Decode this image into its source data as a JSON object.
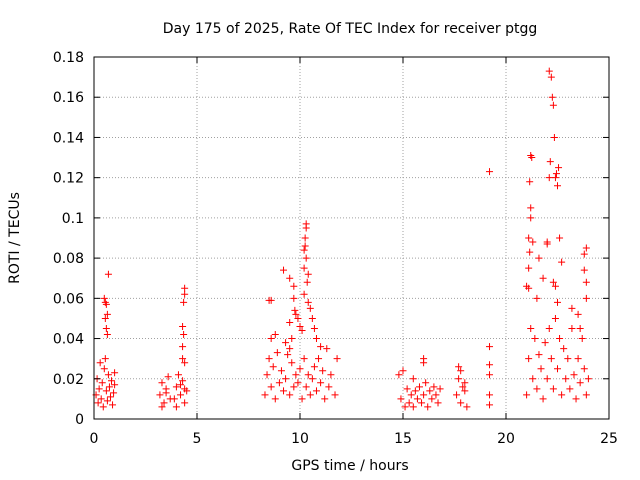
{
  "chart_data": {
    "type": "scatter",
    "title": "Day 175 of 2025, Rate Of TEC Index for receiver ptgg",
    "xlabel": "GPS time / hours",
    "ylabel": "ROTI / TECUs",
    "xlim": [
      0,
      25
    ],
    "ylim": [
      0,
      0.18
    ],
    "x_ticks": [
      "0",
      "5",
      "10",
      "15",
      "20",
      "25"
    ],
    "y_ticks": [
      "0",
      "0.02",
      "0.04",
      "0.06",
      "0.08",
      "0.1",
      "0.12",
      "0.14",
      "0.16",
      "0.18"
    ],
    "grid": true,
    "marker": "+",
    "color": "#ff0000",
    "series": [
      {
        "points": [
          [
            0.1,
            0.012
          ],
          [
            0.15,
            0.02
          ],
          [
            0.2,
            0.008
          ],
          [
            0.25,
            0.015
          ],
          [
            0.3,
            0.028
          ],
          [
            0.35,
            0.01
          ],
          [
            0.4,
            0.018
          ],
          [
            0.45,
            0.006
          ],
          [
            0.5,
            0.025
          ],
          [
            0.55,
            0.03
          ],
          [
            0.6,
            0.014
          ],
          [
            0.65,
            0.009
          ],
          [
            0.7,
            0.022
          ],
          [
            0.75,
            0.016
          ],
          [
            0.8,
            0.011
          ],
          [
            0.85,
            0.019
          ],
          [
            0.9,
            0.007
          ],
          [
            0.95,
            0.013
          ],
          [
            1.0,
            0.017
          ],
          [
            1.0,
            0.023
          ],
          [
            0.5,
            0.06
          ],
          [
            0.55,
            0.058
          ],
          [
            0.6,
            0.057
          ],
          [
            0.65,
            0.052
          ],
          [
            0.6,
            0.045
          ],
          [
            0.65,
            0.042
          ],
          [
            0.7,
            0.072
          ],
          [
            0.55,
            0.05
          ],
          [
            3.2,
            0.012
          ],
          [
            3.3,
            0.018
          ],
          [
            3.4,
            0.008
          ],
          [
            3.5,
            0.015
          ],
          [
            3.6,
            0.021
          ],
          [
            3.7,
            0.01
          ],
          [
            3.3,
            0.006
          ],
          [
            3.5,
            0.013
          ],
          [
            3.9,
            0.01
          ],
          [
            4.0,
            0.016
          ],
          [
            4.1,
            0.022
          ],
          [
            4.2,
            0.012
          ],
          [
            4.3,
            0.019
          ],
          [
            4.4,
            0.008
          ],
          [
            4.5,
            0.014
          ],
          [
            4.0,
            0.006
          ],
          [
            4.2,
            0.017
          ],
          [
            4.4,
            0.015
          ],
          [
            4.4,
            0.065
          ],
          [
            4.4,
            0.062
          ],
          [
            4.35,
            0.058
          ],
          [
            4.3,
            0.046
          ],
          [
            4.35,
            0.042
          ],
          [
            4.3,
            0.036
          ],
          [
            4.3,
            0.03
          ],
          [
            4.4,
            0.028
          ],
          [
            8.3,
            0.012
          ],
          [
            8.4,
            0.022
          ],
          [
            8.5,
            0.03
          ],
          [
            8.6,
            0.016
          ],
          [
            8.7,
            0.026
          ],
          [
            8.8,
            0.01
          ],
          [
            8.9,
            0.033
          ],
          [
            9.0,
            0.018
          ],
          [
            9.1,
            0.024
          ],
          [
            9.2,
            0.014
          ],
          [
            9.3,
            0.02
          ],
          [
            9.4,
            0.032
          ],
          [
            9.5,
            0.012
          ],
          [
            9.6,
            0.028
          ],
          [
            9.7,
            0.016
          ],
          [
            9.8,
            0.022
          ],
          [
            9.9,
            0.018
          ],
          [
            10.0,
            0.025
          ],
          [
            10.1,
            0.01
          ],
          [
            10.2,
            0.03
          ],
          [
            10.3,
            0.016
          ],
          [
            10.4,
            0.022
          ],
          [
            10.5,
            0.012
          ],
          [
            10.6,
            0.02
          ],
          [
            10.7,
            0.026
          ],
          [
            10.8,
            0.014
          ],
          [
            10.9,
            0.03
          ],
          [
            11.0,
            0.018
          ],
          [
            11.1,
            0.024
          ],
          [
            11.2,
            0.01
          ],
          [
            11.3,
            0.035
          ],
          [
            11.4,
            0.016
          ],
          [
            11.5,
            0.022
          ],
          [
            11.7,
            0.012
          ],
          [
            11.8,
            0.03
          ],
          [
            8.6,
            0.04
          ],
          [
            8.8,
            0.042
          ],
          [
            9.3,
            0.038
          ],
          [
            9.5,
            0.035
          ],
          [
            8.5,
            0.059
          ],
          [
            8.6,
            0.059
          ],
          [
            9.2,
            0.074
          ],
          [
            9.5,
            0.07
          ],
          [
            9.7,
            0.066
          ],
          [
            9.7,
            0.06
          ],
          [
            9.75,
            0.054
          ],
          [
            9.8,
            0.052
          ],
          [
            9.9,
            0.05
          ],
          [
            9.5,
            0.048
          ],
          [
            10.0,
            0.046
          ],
          [
            10.1,
            0.044
          ],
          [
            9.6,
            0.04
          ],
          [
            10.2,
            0.084
          ],
          [
            10.25,
            0.086
          ],
          [
            10.3,
            0.095
          ],
          [
            10.3,
            0.097
          ],
          [
            10.25,
            0.09
          ],
          [
            10.3,
            0.08
          ],
          [
            10.2,
            0.075
          ],
          [
            10.4,
            0.072
          ],
          [
            10.35,
            0.068
          ],
          [
            10.2,
            0.062
          ],
          [
            10.4,
            0.058
          ],
          [
            10.5,
            0.055
          ],
          [
            10.6,
            0.05
          ],
          [
            10.7,
            0.045
          ],
          [
            10.8,
            0.04
          ],
          [
            11.0,
            0.036
          ],
          [
            14.8,
            0.022
          ],
          [
            15.0,
            0.024
          ],
          [
            14.9,
            0.01
          ],
          [
            15.1,
            0.006
          ],
          [
            15.2,
            0.015
          ],
          [
            15.3,
            0.008
          ],
          [
            15.4,
            0.012
          ],
          [
            15.5,
            0.006
          ],
          [
            15.6,
            0.014
          ],
          [
            15.7,
            0.01
          ],
          [
            15.8,
            0.016
          ],
          [
            15.9,
            0.008
          ],
          [
            16.0,
            0.012
          ],
          [
            16.1,
            0.018
          ],
          [
            16.2,
            0.006
          ],
          [
            16.3,
            0.014
          ],
          [
            16.4,
            0.01
          ],
          [
            16.5,
            0.016
          ],
          [
            16.6,
            0.012
          ],
          [
            16.7,
            0.008
          ],
          [
            16.8,
            0.015
          ],
          [
            15.5,
            0.02
          ],
          [
            16.0,
            0.03
          ],
          [
            16.0,
            0.028
          ],
          [
            17.6,
            0.012
          ],
          [
            17.7,
            0.02
          ],
          [
            17.8,
            0.008
          ],
          [
            17.9,
            0.016
          ],
          [
            18.0,
            0.014
          ],
          [
            18.1,
            0.006
          ],
          [
            17.7,
            0.026
          ],
          [
            17.8,
            0.024
          ],
          [
            18.0,
            0.018
          ],
          [
            19.2,
            0.123
          ],
          [
            19.2,
            0.036
          ],
          [
            19.2,
            0.027
          ],
          [
            19.2,
            0.022
          ],
          [
            19.2,
            0.012
          ],
          [
            19.2,
            0.007
          ],
          [
            21.0,
            0.012
          ],
          [
            21.1,
            0.03
          ],
          [
            21.2,
            0.045
          ],
          [
            21.3,
            0.02
          ],
          [
            21.4,
            0.04
          ],
          [
            21.5,
            0.015
          ],
          [
            21.6,
            0.032
          ],
          [
            21.7,
            0.025
          ],
          [
            21.8,
            0.01
          ],
          [
            21.9,
            0.038
          ],
          [
            22.0,
            0.02
          ],
          [
            22.1,
            0.045
          ],
          [
            22.2,
            0.03
          ],
          [
            22.3,
            0.015
          ],
          [
            22.4,
            0.05
          ],
          [
            22.5,
            0.025
          ],
          [
            22.6,
            0.04
          ],
          [
            22.7,
            0.012
          ],
          [
            22.8,
            0.035
          ],
          [
            22.9,
            0.02
          ],
          [
            23.0,
            0.03
          ],
          [
            23.1,
            0.015
          ],
          [
            23.2,
            0.045
          ],
          [
            23.3,
            0.022
          ],
          [
            23.4,
            0.01
          ],
          [
            23.5,
            0.03
          ],
          [
            23.6,
            0.018
          ],
          [
            23.7,
            0.04
          ],
          [
            23.8,
            0.025
          ],
          [
            23.9,
            0.012
          ],
          [
            24.0,
            0.02
          ],
          [
            21.0,
            0.066
          ],
          [
            21.1,
            0.065
          ],
          [
            21.1,
            0.075
          ],
          [
            21.15,
            0.083
          ],
          [
            21.1,
            0.09
          ],
          [
            21.2,
            0.1
          ],
          [
            21.2,
            0.105
          ],
          [
            21.15,
            0.118
          ],
          [
            21.2,
            0.131
          ],
          [
            21.25,
            0.13
          ],
          [
            21.3,
            0.088
          ],
          [
            21.5,
            0.06
          ],
          [
            21.6,
            0.08
          ],
          [
            21.8,
            0.07
          ],
          [
            22.0,
            0.088
          ],
          [
            22.0,
            0.087
          ],
          [
            22.1,
            0.12
          ],
          [
            22.15,
            0.128
          ],
          [
            22.1,
            0.173
          ],
          [
            22.2,
            0.17
          ],
          [
            22.25,
            0.16
          ],
          [
            22.3,
            0.156
          ],
          [
            22.35,
            0.14
          ],
          [
            22.4,
            0.12
          ],
          [
            22.45,
            0.122
          ],
          [
            22.5,
            0.116
          ],
          [
            22.55,
            0.125
          ],
          [
            22.6,
            0.09
          ],
          [
            22.7,
            0.078
          ],
          [
            22.3,
            0.068
          ],
          [
            22.4,
            0.066
          ],
          [
            22.5,
            0.058
          ],
          [
            23.2,
            0.055
          ],
          [
            23.5,
            0.052
          ],
          [
            23.6,
            0.045
          ],
          [
            23.8,
            0.082
          ],
          [
            23.9,
            0.085
          ],
          [
            23.8,
            0.074
          ],
          [
            23.9,
            0.068
          ],
          [
            23.9,
            0.06
          ]
        ]
      }
    ]
  }
}
